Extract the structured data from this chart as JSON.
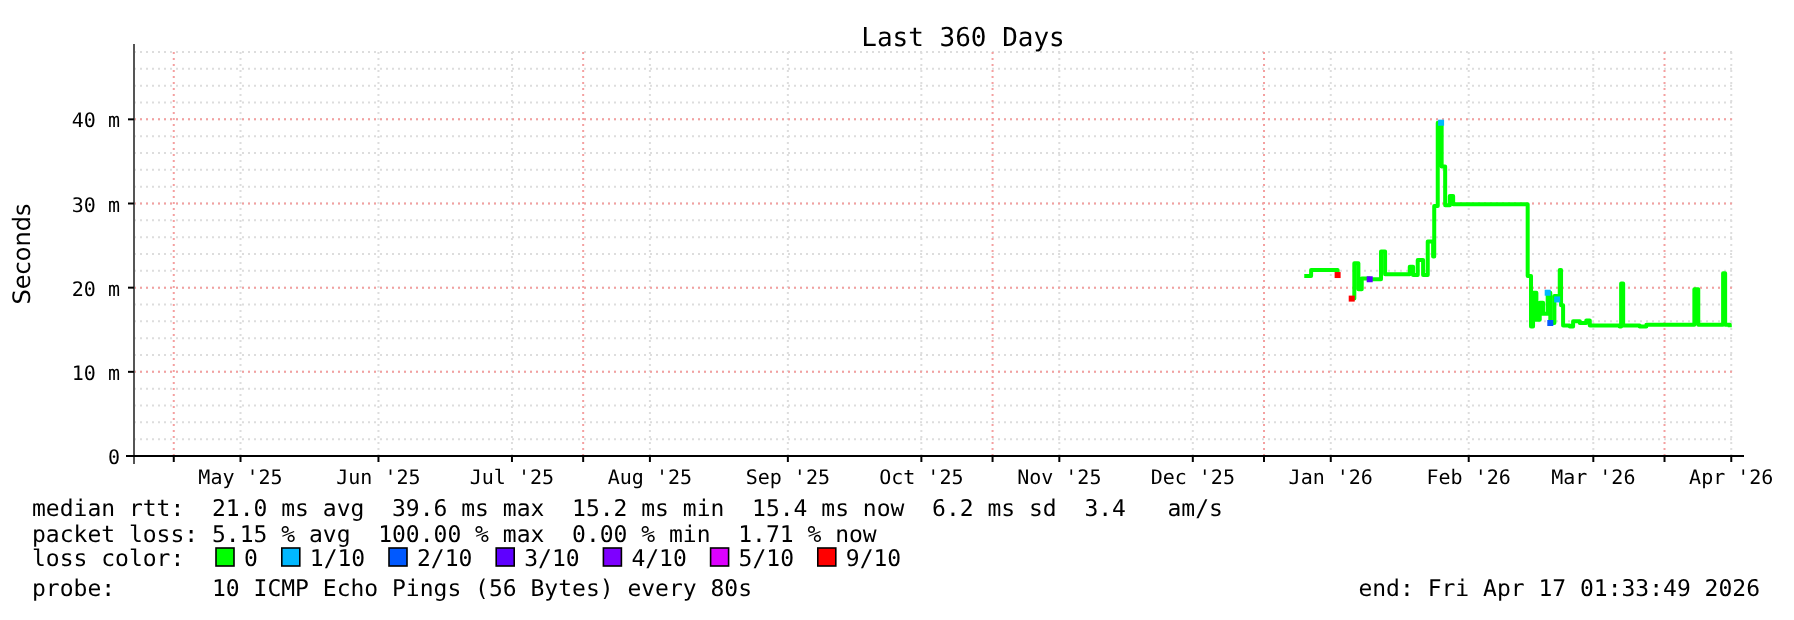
{
  "chart_data": {
    "type": "step",
    "title": "Last 360 Days",
    "ylabel": "Seconds",
    "legend_title": "loss color:",
    "legend": "bottom",
    "grid": true,
    "xlim": [
      "2025-04-22T01:33",
      "2026-04-17T01:33"
    ],
    "xticks": [
      {
        "value": "2025-05-01",
        "label": null
      },
      {
        "value": "2025-05-16",
        "label": "May '25"
      },
      {
        "value": "2025-06-16",
        "label": "Jun '25"
      },
      {
        "value": "2025-07-16",
        "label": "Jul '25"
      },
      {
        "value": "2025-08-01",
        "label": null
      },
      {
        "value": "2025-08-16",
        "label": "Aug '25"
      },
      {
        "value": "2025-09-16",
        "label": "Sep '25"
      },
      {
        "value": "2025-10-16",
        "label": "Oct '25"
      },
      {
        "value": "2025-11-01",
        "label": null
      },
      {
        "value": "2025-11-16",
        "label": "Nov '25"
      },
      {
        "value": "2025-12-16",
        "label": "Dec '25"
      },
      {
        "value": "2026-01-01",
        "label": null
      },
      {
        "value": "2026-01-16",
        "label": "Jan '26"
      },
      {
        "value": "2026-02-16",
        "label": "Feb '26"
      },
      {
        "value": "2026-03-16",
        "label": "Mar '26"
      },
      {
        "value": "2026-04-01",
        "label": null
      },
      {
        "value": "2026-04-16",
        "label": "Apr '26"
      }
    ],
    "ylim": [
      0,
      48
    ],
    "yticks": [
      0,
      {
        "value": 10,
        "label": "10 m"
      },
      {
        "value": 20,
        "label": "20 m"
      },
      {
        "value": 30,
        "label": "30 m"
      },
      {
        "value": 40,
        "label": "40 m"
      }
    ],
    "x": [
      "2026-01-10T01:00",
      "2026-01-11T14:00",
      "2026-01-17T13:00",
      "2026-01-19T00:00",
      "2026-01-20T17:00",
      "2026-01-21T07:00",
      "2026-01-22T05:00",
      "2026-01-22T23:00",
      "2026-01-24T18:00",
      "2026-01-27T07:00",
      "2026-01-28T05:00",
      "2026-02-01T06:00",
      "2026-02-02T18:00",
      "2026-02-03T12:00",
      "2026-02-04T13:00",
      "2026-02-05T18:00",
      "2026-02-06T19:00",
      "2026-02-08T00:00",
      "2026-02-08T06:00",
      "2026-02-09T01:00",
      "2026-02-09T19:00",
      "2026-02-09T22:00",
      "2026-02-10T17:00",
      "2026-02-11T18:00",
      "2026-02-12T12:00",
      "2026-02-28T23:00",
      "2026-03-01T06:00",
      "2026-03-02T00:00",
      "2026-03-02T11:00",
      "2026-03-03T05:00",
      "2026-03-03T23:00",
      "2026-03-04T17:00",
      "2026-03-05T18:00",
      "2026-03-06T08:00",
      "2026-03-07T06:00",
      "2026-03-07T21:00",
      "2026-03-08T11:00",
      "2026-03-08T18:00",
      "2026-03-09T05:00",
      "2026-03-10T17:00",
      "2026-03-11T11:00",
      "2026-03-12T23:00",
      "2026-03-14T10:00",
      "2026-03-15T05:00",
      "2026-03-21T22:00",
      "2026-03-22T06:00",
      "2026-03-22T17:00",
      "2026-03-26T10:00",
      "2026-03-27T22:00",
      "2026-04-07T10:00",
      "2026-04-07T17:00",
      "2026-04-08T08:00",
      "2026-04-08T14:00",
      "2026-04-13T17:00",
      "2026-04-14T04:00",
      "2026-04-14T15:00",
      "2026-04-15T16:00"
    ],
    "series": [
      {
        "name": "0",
        "color": "#00ff00",
        "values": [
          21.4,
          22.1,
          21.5,
          null,
          18.7,
          22.9,
          19.8,
          21.1,
          21.0,
          24.3,
          21.6,
          21.6,
          22.5,
          21.5,
          23.3,
          21.5,
          25.5,
          23.7,
          29.7,
          39.6,
          39.6,
          34.4,
          29.8,
          30.9,
          29.9,
          29.9,
          21.4,
          15.4,
          19.4,
          16.2,
          18.2,
          16.9,
          19.4,
          15.8,
          19.0,
          18.6,
          22.1,
          17.9,
          15.5,
          15.4,
          16.0,
          15.8,
          16.1,
          15.5,
          15.4,
          20.5,
          15.5,
          15.4,
          15.6,
          15.6,
          19.8,
          19.8,
          15.6,
          15.6,
          21.7,
          15.6,
          15.3
        ]
      },
      {
        "name": "1/10",
        "color": "#00b8ff",
        "type": "scatter",
        "x": [
          "2026-02-09T19:00",
          "2026-03-05T18:00",
          "2026-03-07T21:00"
        ],
        "values": [
          39.6,
          19.4,
          18.6
        ]
      },
      {
        "name": "2/10",
        "color": "#0059ff",
        "type": "scatter",
        "x": [
          "2026-03-06T08:00"
        ],
        "values": [
          15.8
        ]
      },
      {
        "name": "3/10",
        "color": "#5e00ff",
        "type": "scatter",
        "x": [
          "2026-01-24T18:00"
        ],
        "values": [
          21.0
        ]
      },
      {
        "name": "4/10",
        "color": "#7e00ff",
        "type": "scatter",
        "values": [
          null,
          null,
          null,
          null,
          null,
          null,
          null,
          null,
          null,
          null,
          null,
          null,
          null,
          null,
          null,
          null,
          null,
          null,
          null,
          null,
          null,
          null,
          null,
          null,
          null,
          null,
          null,
          null,
          null,
          null,
          null,
          null,
          null,
          null,
          null,
          null,
          null,
          null,
          null,
          null,
          null,
          null,
          null,
          null,
          null,
          null,
          null,
          null,
          null,
          null,
          null,
          null,
          null,
          null,
          null,
          null,
          null
        ]
      },
      {
        "name": "5/10",
        "color": "#dd00ff",
        "type": "scatter",
        "values": [
          null,
          null,
          null,
          null,
          null,
          null,
          null,
          null,
          null,
          null,
          null,
          null,
          null,
          null,
          null,
          null,
          null,
          null,
          null,
          null,
          null,
          null,
          null,
          null,
          null,
          null,
          null,
          null,
          null,
          null,
          null,
          null,
          null,
          null,
          null,
          null,
          null,
          null,
          null,
          null,
          null,
          null,
          null,
          null,
          null,
          null,
          null,
          null,
          null,
          null,
          null,
          null,
          null,
          null,
          null,
          null,
          null
        ]
      },
      {
        "name": "9/10",
        "color": "#ff0000",
        "type": "scatter",
        "x": [
          "2026-01-17T13:00",
          "2026-01-20T17:00"
        ],
        "values": [
          21.5,
          18.7
        ]
      }
    ],
    "annotations": [
      "median rtt:  21.0 ms avg  39.6 ms max  15.2 ms min  15.4 ms now  6.2 ms sd  3.4   am/s",
      "packet loss: 5.15 % avg  100.00 % max  0.00 % min  1.71 % now",
      "probe:       10 ICMP Echo Pings (56 Bytes) every 80s",
      "end: Fri Apr 17 01:33:49 2026"
    ]
  }
}
